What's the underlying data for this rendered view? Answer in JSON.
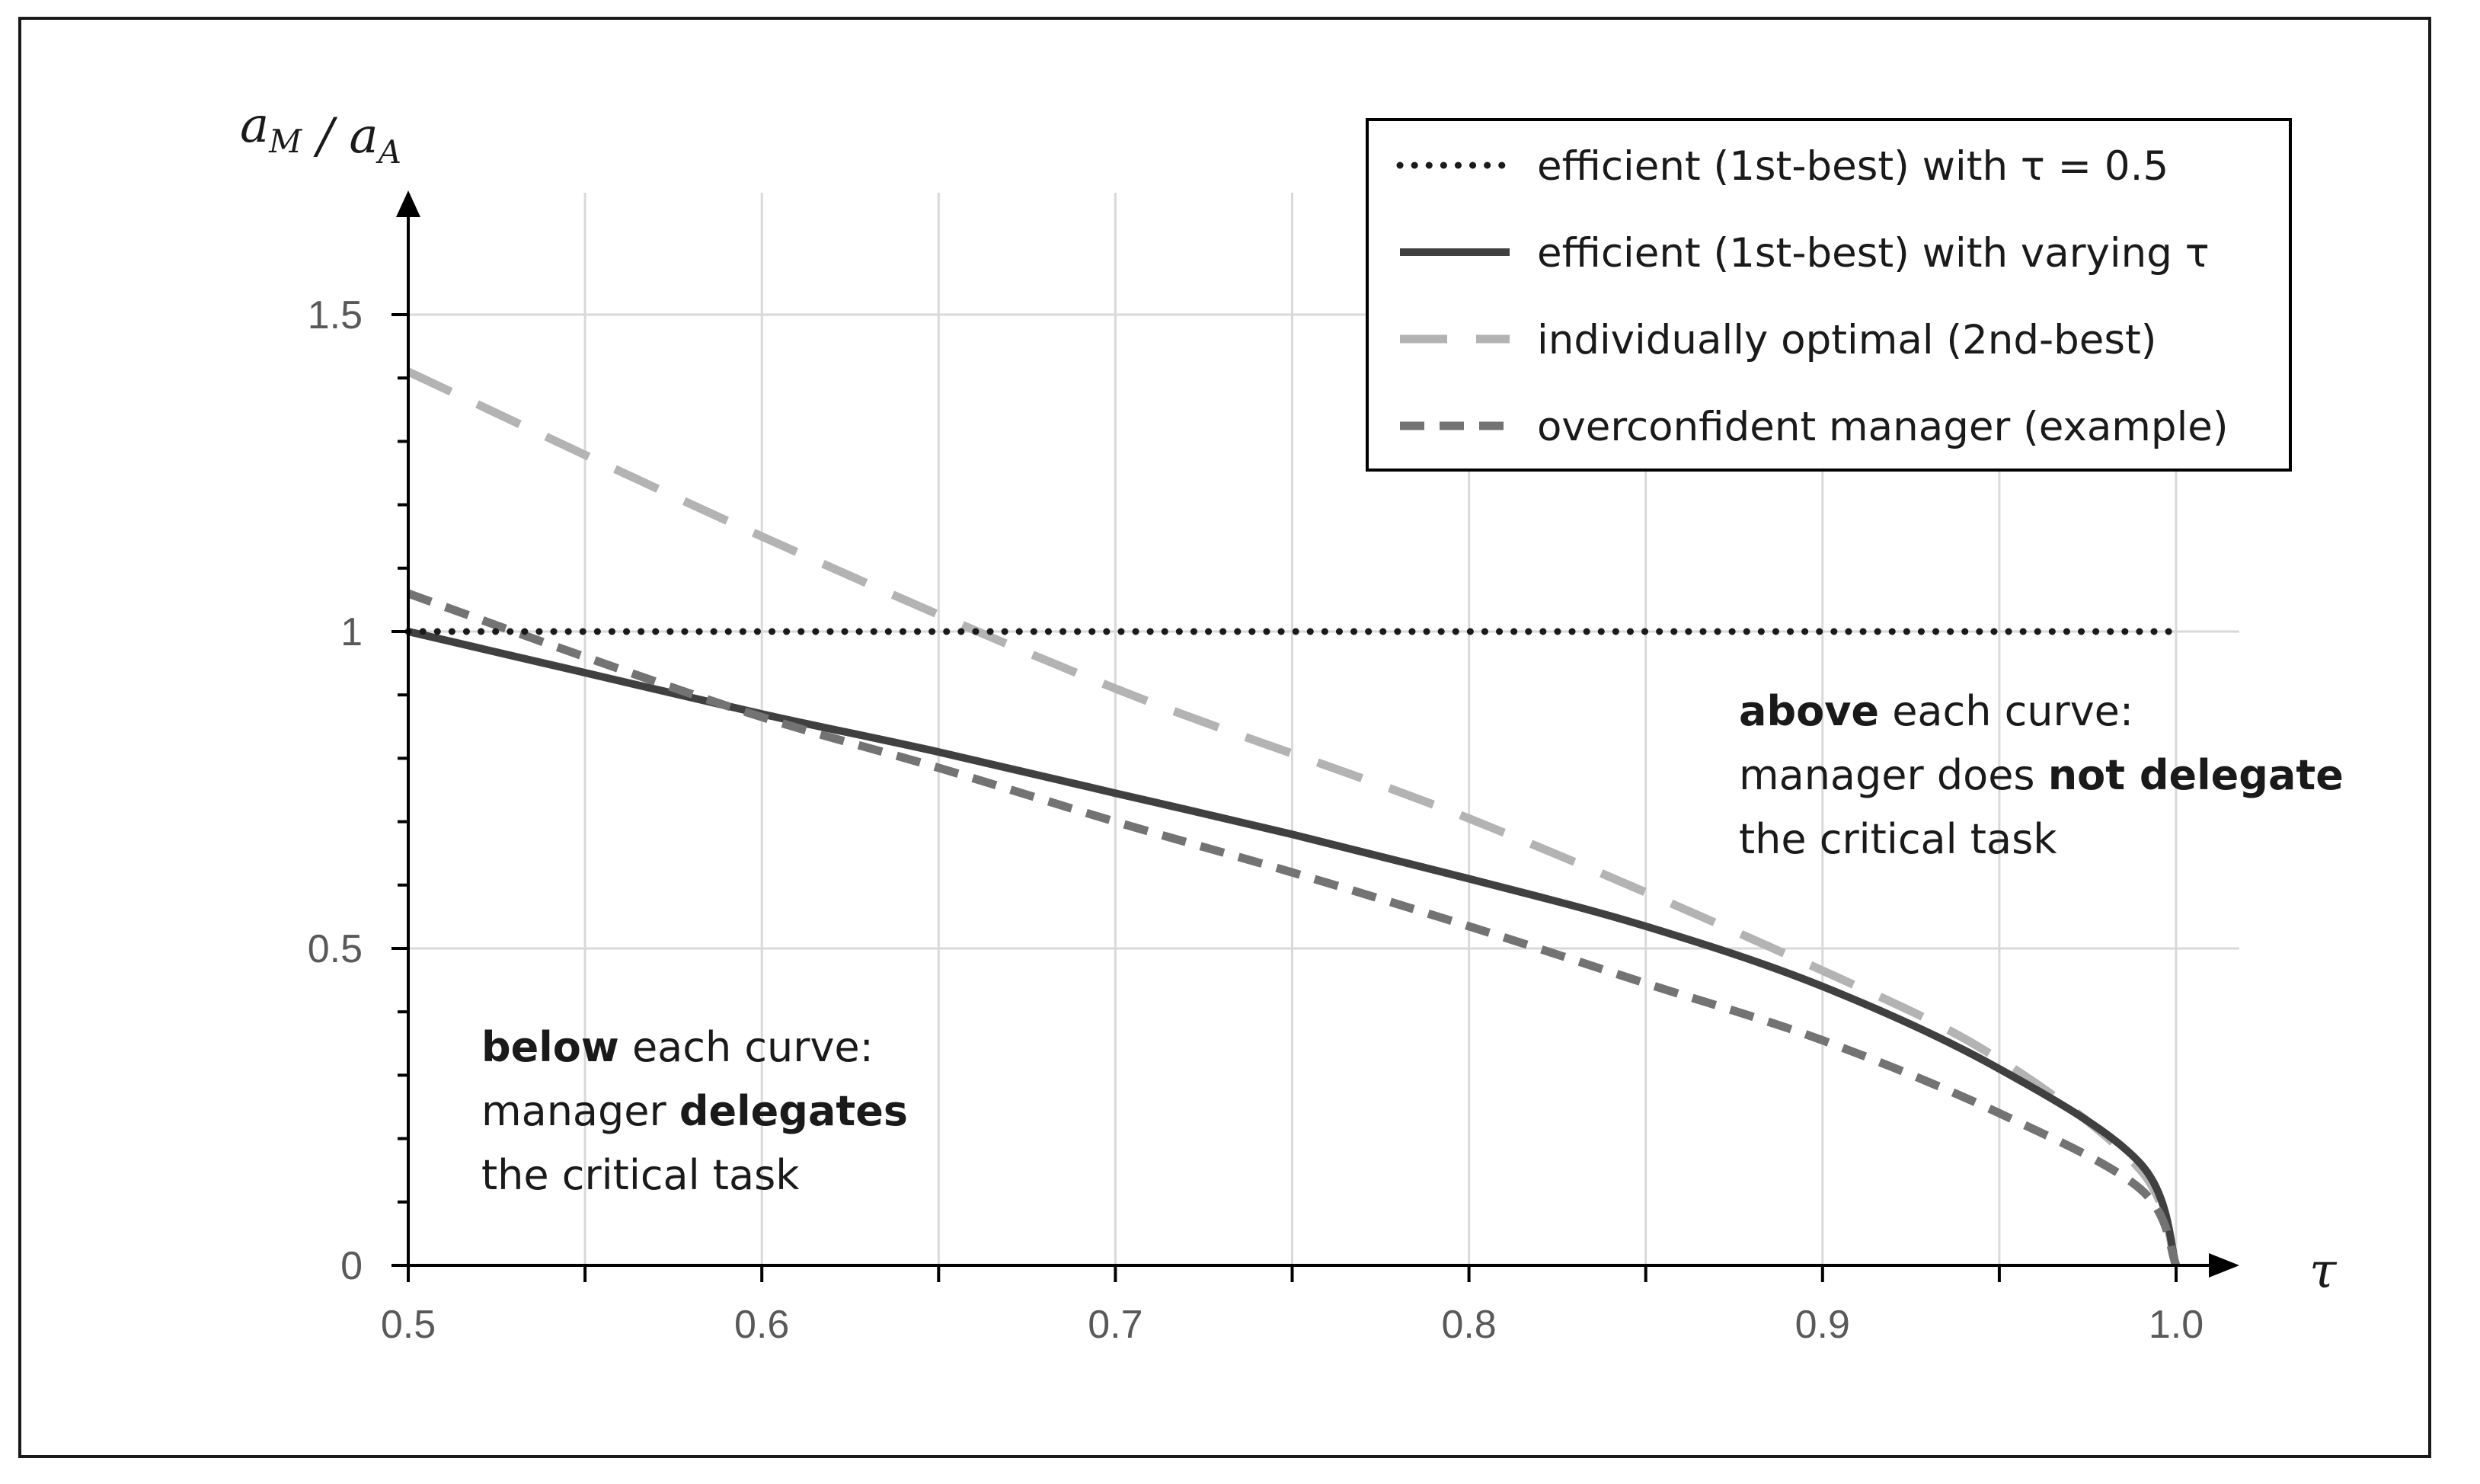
{
  "chart_data": {
    "type": "line",
    "ylabel": {
      "main": "a",
      "sub_num": "M",
      "sep": " / ",
      "den": "a",
      "sub_den": "A"
    },
    "xlabel": "τ",
    "xlim": [
      0.5,
      1.0
    ],
    "ylim": [
      0,
      1.5
    ],
    "x_ticks": [
      {
        "value": 0.5,
        "label": "0.5"
      },
      {
        "value": 0.6,
        "label": "0.6"
      },
      {
        "value": 0.7,
        "label": "0.7"
      },
      {
        "value": 0.8,
        "label": "0.8"
      },
      {
        "value": 0.9,
        "label": "0.9"
      },
      {
        "value": 1.0,
        "label": "1.0"
      }
    ],
    "y_ticks": [
      {
        "value": 0,
        "label": "0"
      },
      {
        "value": 0.5,
        "label": "0.5"
      },
      {
        "value": 1,
        "label": "1"
      },
      {
        "value": 1.5,
        "label": "1.5"
      }
    ],
    "grid": true,
    "legend_position": "top-right",
    "series": [
      {
        "name": "efficient (1st-best) with τ = 0.5",
        "style": "dotted",
        "color": "#1a1a1a",
        "x": [
          0.5,
          1.0
        ],
        "y": [
          1.0,
          1.0
        ]
      },
      {
        "name": "efficient (1st-best) with varying τ",
        "style": "solid",
        "color": "#404040",
        "x": [
          0.5,
          0.55,
          0.6,
          0.65,
          0.7,
          0.75,
          0.8,
          0.85,
          0.9,
          0.95,
          0.99,
          1.0
        ],
        "y": [
          1.0,
          0.935,
          0.87,
          0.81,
          0.745,
          0.68,
          0.61,
          0.535,
          0.44,
          0.31,
          0.16,
          0.0
        ]
      },
      {
        "name": "individually optimal (2nd-best)",
        "style": "long-dash",
        "color": "#b3b3b3",
        "x": [
          0.5,
          0.6,
          0.7,
          0.8,
          0.9,
          0.95,
          0.99,
          1.0
        ],
        "y": [
          1.41,
          1.15,
          0.91,
          0.705,
          0.465,
          0.325,
          0.15,
          0.0
        ]
      },
      {
        "name": "overconfident manager (example)",
        "style": "short-dash",
        "color": "#737373",
        "x": [
          0.5,
          0.55,
          0.6,
          0.65,
          0.7,
          0.75,
          0.8,
          0.85,
          0.9,
          0.95,
          0.99,
          1.0
        ],
        "y": [
          1.06,
          0.96,
          0.865,
          0.785,
          0.7,
          0.62,
          0.535,
          0.445,
          0.355,
          0.24,
          0.12,
          0.0
        ]
      }
    ],
    "annotations": [
      {
        "id": "above",
        "lines": [
          [
            {
              "text": "above",
              "bold": true
            },
            {
              "text": " each curve:",
              "bold": false
            }
          ],
          [
            {
              "text": "manager does ",
              "bold": false
            },
            {
              "text": "not delegate",
              "bold": true
            }
          ],
          [
            {
              "text": "the critical task",
              "bold": false
            }
          ]
        ]
      },
      {
        "id": "below",
        "lines": [
          [
            {
              "text": "below",
              "bold": true
            },
            {
              "text": " each curve:",
              "bold": false
            }
          ],
          [
            {
              "text": "manager ",
              "bold": false
            },
            {
              "text": "delegates",
              "bold": true
            }
          ],
          [
            {
              "text": "the critical task",
              "bold": false
            }
          ]
        ]
      }
    ]
  }
}
